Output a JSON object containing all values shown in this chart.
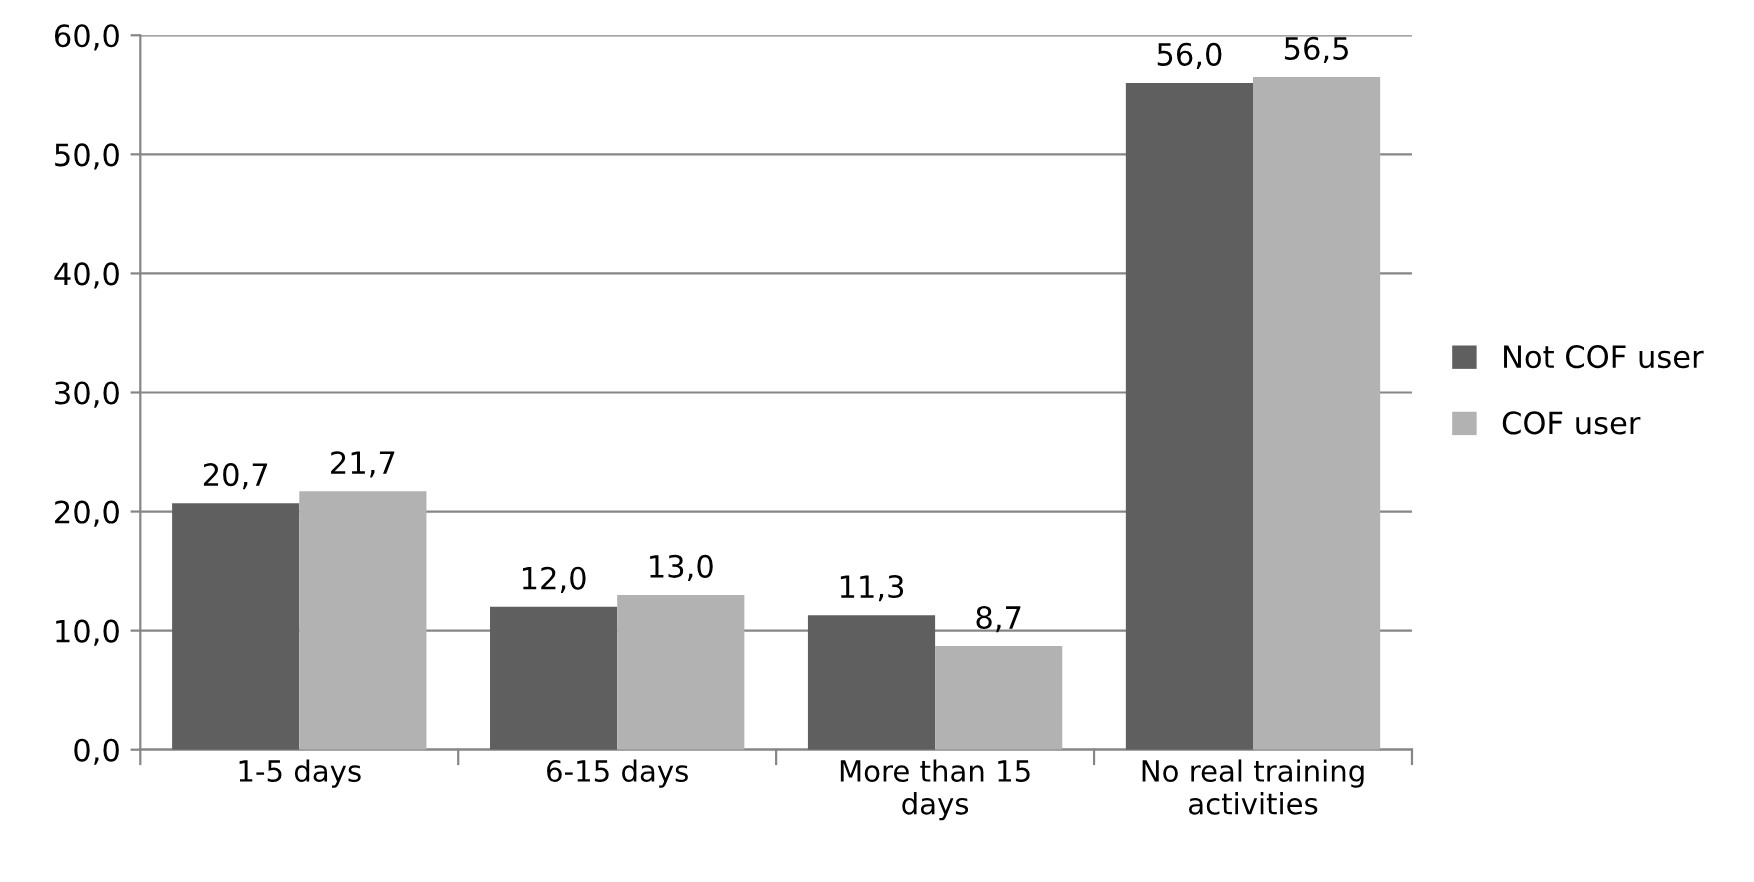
{
  "chart_data": {
    "type": "bar",
    "categories": [
      "1-5 days",
      "6-15 days",
      "More than 15\ndays",
      "No real training\nactivities"
    ],
    "series": [
      {
        "name": "Not COF user",
        "color": "#5f5f5f",
        "values": [
          20.7,
          12.0,
          11.3,
          56.0
        ],
        "value_labels": [
          "20,7",
          "12,0",
          "11,3",
          "56,0"
        ]
      },
      {
        "name": "COF user",
        "color": "#b2b2b2",
        "values": [
          21.7,
          13.0,
          8.7,
          56.5
        ],
        "value_labels": [
          "21,7",
          "13,0",
          "8,7",
          "56,5"
        ]
      }
    ],
    "ylim": [
      0,
      60
    ],
    "yticks": [
      {
        "value": 0,
        "label": "0,0"
      },
      {
        "value": 10,
        "label": "10,0"
      },
      {
        "value": 20,
        "label": "20,0"
      },
      {
        "value": 30,
        "label": "30,0"
      },
      {
        "value": 40,
        "label": "40,0"
      },
      {
        "value": 50,
        "label": "50,0"
      },
      {
        "value": 60,
        "label": "60,0"
      }
    ],
    "grid": "y",
    "legend": "right"
  }
}
